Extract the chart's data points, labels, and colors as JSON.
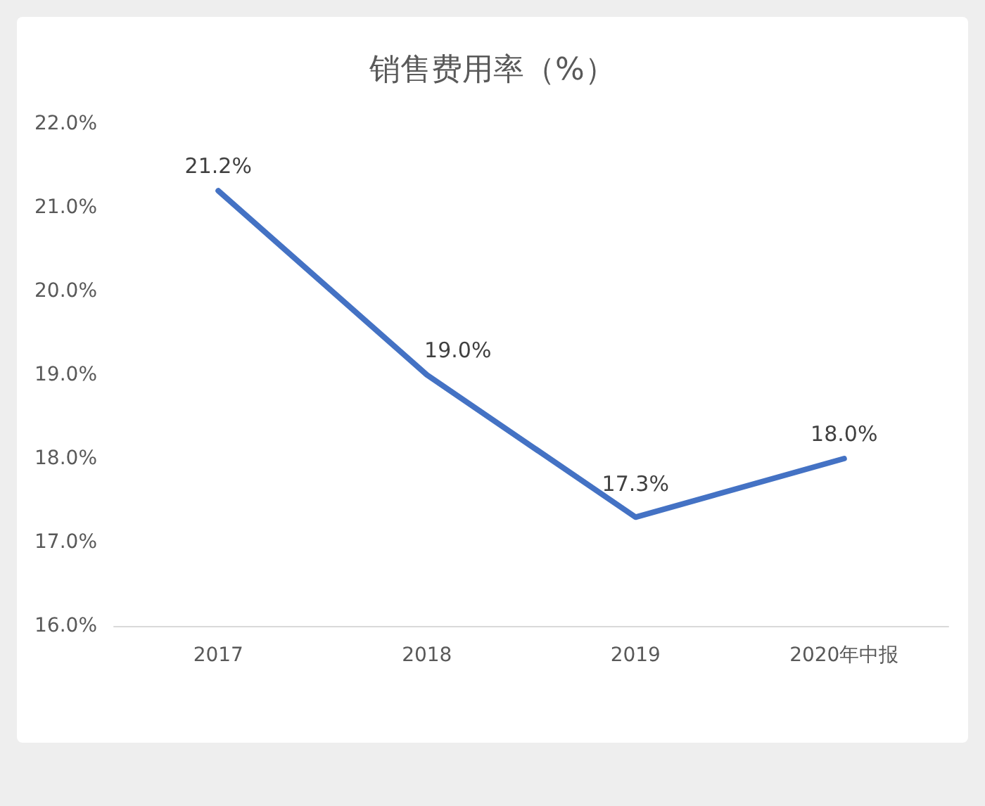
{
  "chart_data": {
    "type": "line",
    "title": "销售费用率（%）",
    "categories": [
      "2017",
      "2018",
      "2019",
      "2020年中报"
    ],
    "series": [
      {
        "color": "#4472c4",
        "values": [
          21.2,
          19.0,
          17.3,
          18.0
        ],
        "value_labels": [
          "21.2%",
          "19.0%",
          "17.3%",
          "18.0%"
        ]
      }
    ],
    "ylim": [
      16,
      22
    ],
    "yticks": [
      {
        "value": 16,
        "label": "16.0%"
      },
      {
        "value": 17,
        "label": "17.0%"
      },
      {
        "value": 18,
        "label": "18.0%"
      },
      {
        "value": 19,
        "label": "19.0%"
      },
      {
        "value": 20,
        "label": "20.0%"
      },
      {
        "value": 21,
        "label": "21.0%"
      },
      {
        "value": 22,
        "label": "22.0%"
      }
    ],
    "grid": false
  }
}
